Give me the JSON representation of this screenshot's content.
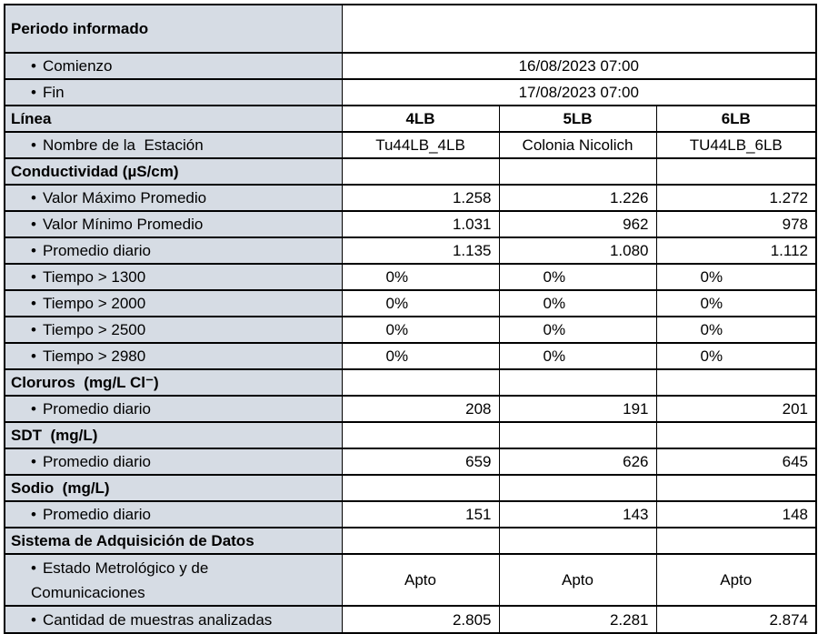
{
  "colors": {
    "label_bg": "#D6DCE4",
    "border": "#000000",
    "cell_bg": "#FFFFFF",
    "text": "#000000"
  },
  "table": {
    "bullet_glyph": "•",
    "columns": [
      "4LB",
      "5LB",
      "6LB"
    ],
    "rows": [
      {
        "type": "header",
        "label": "Periodo informado",
        "merged": ""
      },
      {
        "type": "item",
        "label": "Comienzo",
        "merged": "16/08/2023 07:00"
      },
      {
        "type": "item",
        "label": "Fin",
        "merged": "17/08/2023 07:00"
      },
      {
        "type": "section",
        "label": "Línea",
        "cells": [
          "4LB",
          "5LB",
          "6LB"
        ],
        "align": "center",
        "cells_bold": true
      },
      {
        "type": "item",
        "label": "Nombre de la  Estación",
        "cells": [
          "Tu44LB_4LB",
          "Colonia Nicolich",
          "TU44LB_6LB"
        ],
        "align": "center"
      },
      {
        "type": "section",
        "label": "Conductividad (µS/cm)",
        "cells": [
          "",
          "",
          ""
        ],
        "align": "center"
      },
      {
        "type": "item",
        "label": "Valor Máximo Promedio",
        "cells": [
          "1.258",
          "1.226",
          "1.272"
        ],
        "align": "right"
      },
      {
        "type": "item",
        "label": "Valor Mínimo Promedio",
        "cells": [
          "1.031",
          "962",
          "978"
        ],
        "align": "right"
      },
      {
        "type": "item",
        "label": "Promedio diario",
        "cells": [
          "1.135",
          "1.080",
          "1.112"
        ],
        "align": "right"
      },
      {
        "type": "item",
        "label": "Tiempo > 1300",
        "cells": [
          "0%",
          "0%",
          "0%"
        ],
        "align": "pct"
      },
      {
        "type": "item",
        "label": "Tiempo > 2000",
        "cells": [
          "0%",
          "0%",
          "0%"
        ],
        "align": "pct"
      },
      {
        "type": "item",
        "label": "Tiempo > 2500",
        "cells": [
          "0%",
          "0%",
          "0%"
        ],
        "align": "pct"
      },
      {
        "type": "item",
        "label": "Tiempo > 2980",
        "cells": [
          "0%",
          "0%",
          "0%"
        ],
        "align": "pct"
      },
      {
        "type": "section",
        "label": "Cloruros  (mg/L Cl⁻)",
        "cells": [
          "",
          "",
          ""
        ],
        "align": "center"
      },
      {
        "type": "item",
        "label": "Promedio diario",
        "cells": [
          "208",
          "191",
          "201"
        ],
        "align": "right"
      },
      {
        "type": "section",
        "label": "SDT  (mg/L)",
        "cells": [
          "",
          "",
          ""
        ],
        "align": "center"
      },
      {
        "type": "item",
        "label": "Promedio diario",
        "cells": [
          "659",
          "626",
          "645"
        ],
        "align": "right"
      },
      {
        "type": "section",
        "label": "Sodio  (mg/L)",
        "cells": [
          "",
          "",
          ""
        ],
        "align": "center"
      },
      {
        "type": "item",
        "label": "Promedio diario",
        "cells": [
          "151",
          "143",
          "148"
        ],
        "align": "right"
      },
      {
        "type": "section",
        "label": "Sistema de Adquisición de Datos",
        "cells": [
          "",
          "",
          ""
        ],
        "align": "center"
      },
      {
        "type": "item-wrap",
        "label": "Estado Metrológico y de\nComunicaciones",
        "cells": [
          "Apto",
          "Apto",
          "Apto"
        ],
        "align": "center"
      },
      {
        "type": "item-last",
        "label": "Cantidad de muestras analizadas",
        "cells": [
          "2.805",
          "2.281",
          "2.874"
        ],
        "align": "right"
      }
    ]
  }
}
